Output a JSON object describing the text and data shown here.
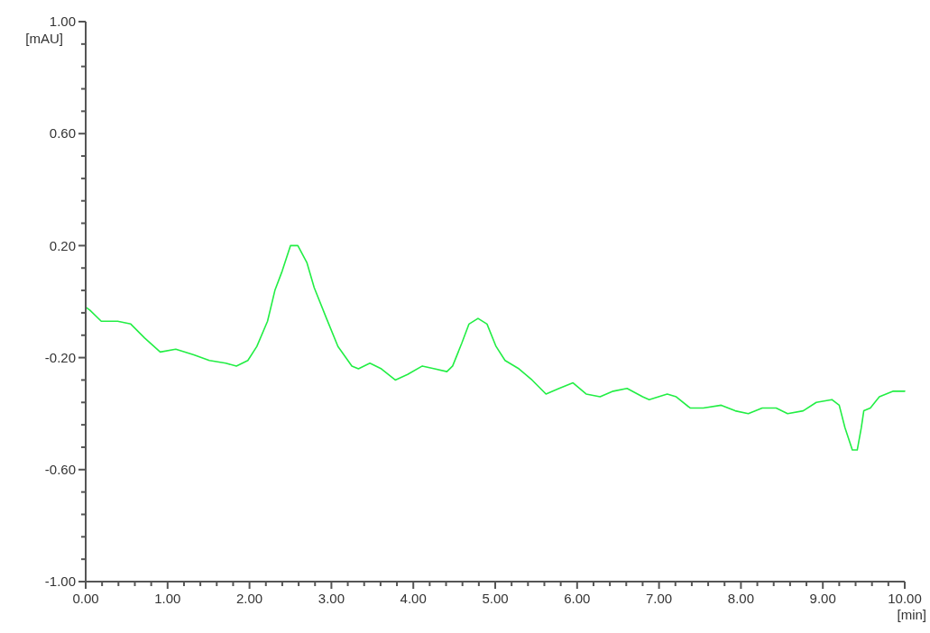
{
  "chart_data": {
    "type": "line",
    "ylabel": "[mAU]",
    "xlabel": "[min]",
    "xlim": [
      0,
      10
    ],
    "ylim": [
      -1,
      1
    ],
    "xticks": [
      {
        "value": 0,
        "label": "0.00"
      },
      {
        "value": 0.2,
        "label": null
      },
      {
        "value": 0.4,
        "label": null
      },
      {
        "value": 0.6,
        "label": null
      },
      {
        "value": 0.8,
        "label": null
      },
      {
        "value": 1,
        "label": "1.00"
      },
      {
        "value": 1.2,
        "label": null
      },
      {
        "value": 1.4,
        "label": null
      },
      {
        "value": 1.6,
        "label": null
      },
      {
        "value": 1.8,
        "label": null
      },
      {
        "value": 2,
        "label": "2.00"
      },
      {
        "value": 2.2,
        "label": null
      },
      {
        "value": 2.4,
        "label": null
      },
      {
        "value": 2.6,
        "label": null
      },
      {
        "value": 2.8,
        "label": null
      },
      {
        "value": 3,
        "label": "3.00"
      },
      {
        "value": 3.2,
        "label": null
      },
      {
        "value": 3.4,
        "label": null
      },
      {
        "value": 3.6,
        "label": null
      },
      {
        "value": 3.8,
        "label": null
      },
      {
        "value": 4,
        "label": "4.00"
      },
      {
        "value": 4.2,
        "label": null
      },
      {
        "value": 4.4,
        "label": null
      },
      {
        "value": 4.6,
        "label": null
      },
      {
        "value": 4.8,
        "label": null
      },
      {
        "value": 5,
        "label": "5.00"
      },
      {
        "value": 5.2,
        "label": null
      },
      {
        "value": 5.4,
        "label": null
      },
      {
        "value": 5.6,
        "label": null
      },
      {
        "value": 5.8,
        "label": null
      },
      {
        "value": 6,
        "label": "6.00"
      },
      {
        "value": 6.2,
        "label": null
      },
      {
        "value": 6.4,
        "label": null
      },
      {
        "value": 6.6,
        "label": null
      },
      {
        "value": 6.8,
        "label": null
      },
      {
        "value": 7,
        "label": "7.00"
      },
      {
        "value": 7.2,
        "label": null
      },
      {
        "value": 7.4,
        "label": null
      },
      {
        "value": 7.6,
        "label": null
      },
      {
        "value": 7.8,
        "label": null
      },
      {
        "value": 8,
        "label": "8.00"
      },
      {
        "value": 8.2,
        "label": null
      },
      {
        "value": 8.4,
        "label": null
      },
      {
        "value": 8.6,
        "label": null
      },
      {
        "value": 8.8,
        "label": null
      },
      {
        "value": 9,
        "label": "9.00"
      },
      {
        "value": 9.2,
        "label": null
      },
      {
        "value": 9.4,
        "label": null
      },
      {
        "value": 9.6,
        "label": null
      },
      {
        "value": 9.8,
        "label": null
      },
      {
        "value": 10,
        "label": "10.00"
      }
    ],
    "yticks": [
      {
        "value": -1,
        "label": "-1.00"
      },
      {
        "value": -0.92,
        "label": null
      },
      {
        "value": -0.84,
        "label": null
      },
      {
        "value": -0.76,
        "label": null
      },
      {
        "value": -0.68,
        "label": null
      },
      {
        "value": -0.6,
        "label": "-0.60"
      },
      {
        "value": -0.52,
        "label": null
      },
      {
        "value": -0.44,
        "label": null
      },
      {
        "value": -0.36,
        "label": null
      },
      {
        "value": -0.28,
        "label": null
      },
      {
        "value": -0.2,
        "label": "-0.20"
      },
      {
        "value": -0.12,
        "label": null
      },
      {
        "value": -0.04,
        "label": null
      },
      {
        "value": 0.04,
        "label": null
      },
      {
        "value": 0.12,
        "label": null
      },
      {
        "value": 0.2,
        "label": "0.20"
      },
      {
        "value": 0.28,
        "label": null
      },
      {
        "value": 0.36,
        "label": null
      },
      {
        "value": 0.44,
        "label": null
      },
      {
        "value": 0.52,
        "label": null
      },
      {
        "value": 0.6,
        "label": "0.60"
      },
      {
        "value": 0.68,
        "label": null
      },
      {
        "value": 0.76,
        "label": null
      },
      {
        "value": 0.84,
        "label": null
      },
      {
        "value": 0.92,
        "label": null
      },
      {
        "value": 1,
        "label": "1.00"
      }
    ],
    "grid": false,
    "marker": "none",
    "line_style": "solid",
    "series": [
      {
        "color": "#22ee44",
        "x": [
          0,
          0.05,
          0.19,
          0.39,
          0.55,
          0.72,
          0.91,
          1.1,
          1.32,
          1.51,
          1.71,
          1.84,
          1.98,
          2.09,
          2.22,
          2.31,
          2.4,
          2.5,
          2.59,
          2.7,
          2.79,
          2.94,
          3.08,
          3.25,
          3.33,
          3.47,
          3.61,
          3.78,
          3.93,
          4.11,
          4.26,
          4.41,
          4.48,
          4.59,
          4.68,
          4.79,
          4.9,
          5.01,
          5.12,
          5.29,
          5.45,
          5.62,
          5.78,
          5.95,
          6.11,
          6.28,
          6.44,
          6.61,
          6.8,
          6.88,
          7.1,
          7.21,
          7.38,
          7.54,
          7.76,
          7.93,
          8.09,
          8.26,
          8.43,
          8.57,
          8.76,
          8.92,
          9.11,
          9.2,
          9.27,
          9.36,
          9.42,
          9.47,
          9.5,
          9.58,
          9.69,
          9.86,
          10
        ],
        "values": [
          -0.02,
          -0.03,
          -0.07,
          -0.07,
          -0.08,
          -0.13,
          -0.18,
          -0.17,
          -0.19,
          -0.21,
          -0.22,
          -0.23,
          -0.21,
          -0.16,
          -0.07,
          0.04,
          0.11,
          0.2,
          0.2,
          0.14,
          0.05,
          -0.06,
          -0.16,
          -0.23,
          -0.24,
          -0.22,
          -0.24,
          -0.28,
          -0.26,
          -0.23,
          -0.24,
          -0.25,
          -0.23,
          -0.15,
          -0.08,
          -0.06,
          -0.08,
          -0.16,
          -0.21,
          -0.24,
          -0.28,
          -0.33,
          -0.31,
          -0.29,
          -0.33,
          -0.34,
          -0.32,
          -0.31,
          -0.34,
          -0.35,
          -0.33,
          -0.34,
          -0.38,
          -0.38,
          -0.37,
          -0.39,
          -0.4,
          -0.38,
          -0.38,
          -0.4,
          -0.39,
          -0.36,
          -0.35,
          -0.37,
          -0.45,
          -0.53,
          -0.53,
          -0.45,
          -0.39,
          -0.38,
          -0.34,
          -0.32,
          -0.32
        ]
      }
    ]
  }
}
